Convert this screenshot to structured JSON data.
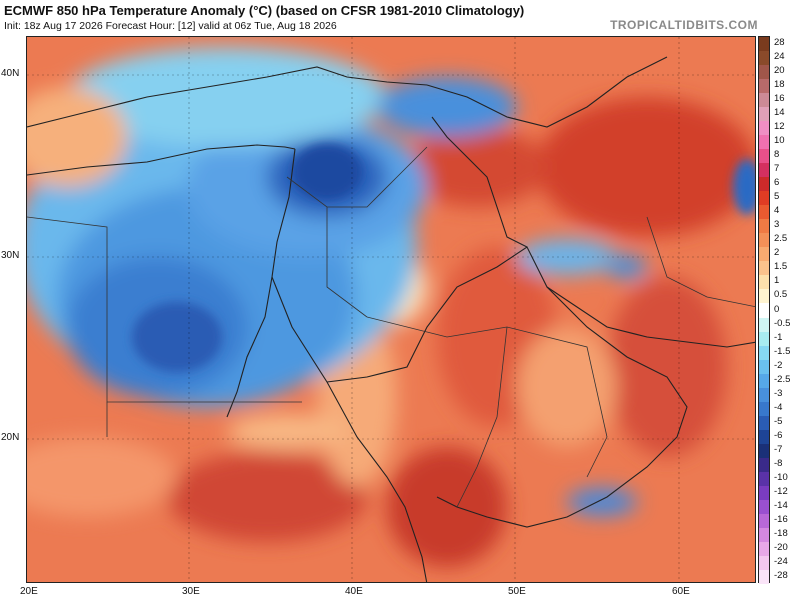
{
  "header": {
    "title": "ECMWF 850 hPa Temperature Anomaly (°C) (based on CFSR 1981-2010 Climatology)",
    "subtitle": "Init: 18z Aug 17 2026   Forecast Hour: [12]   valid at 06z Tue, Aug 18 2026",
    "brand": "TROPICALTIDBITS.COM"
  },
  "axes": {
    "lat_labels": [
      "40N",
      "30N",
      "20N"
    ],
    "lon_labels": [
      "20E",
      "30E",
      "40E",
      "50E",
      "60E"
    ]
  },
  "colorbar": {
    "labels": [
      "28",
      "24",
      "20",
      "18",
      "16",
      "14",
      "12",
      "10",
      "8",
      "7",
      "6",
      "5",
      "4",
      "3",
      "2.5",
      "2",
      "1.5",
      "1",
      "0.5",
      "0",
      "-0.5",
      "-1",
      "-1.5",
      "-2",
      "-2.5",
      "-3",
      "-4",
      "-5",
      "-6",
      "-7",
      "-8",
      "-10",
      "-12",
      "-14",
      "-16",
      "-18",
      "-20",
      "-24",
      "-28"
    ],
    "colors": [
      "#7a3b1e",
      "#8a4a2a",
      "#a0564a",
      "#b86a6a",
      "#cc8a96",
      "#e0a0b8",
      "#f08ec4",
      "#f070b0",
      "#e8508a",
      "#d43060",
      "#cc2a2a",
      "#e03c24",
      "#ea5a30",
      "#f07a44",
      "#f49058",
      "#f8aa70",
      "#fbc28c",
      "#fde0ac",
      "#fff4d0",
      "#ffffff",
      "#cff6f4",
      "#a8ecf0",
      "#86d8f2",
      "#6ac0ee",
      "#56a8e8",
      "#4890dc",
      "#3878cc",
      "#2a5cb4",
      "#1e4496",
      "#1a3078",
      "#3a2a8a",
      "#5a32a8",
      "#7a3cc0",
      "#9a50d0",
      "#b868d8",
      "#d488e0",
      "#e8a8e8",
      "#f4c8f0",
      "#fae4f8"
    ]
  }
}
